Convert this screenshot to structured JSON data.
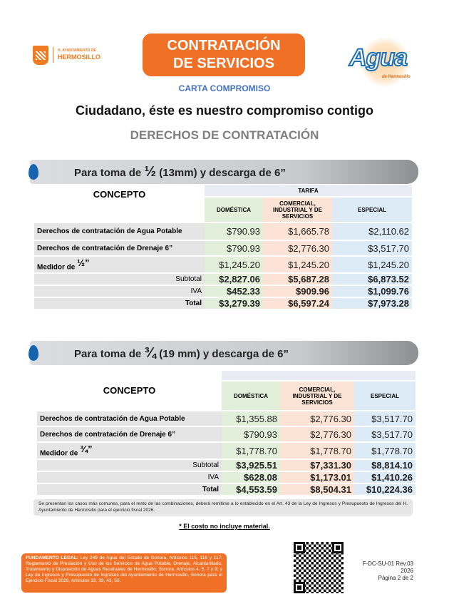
{
  "header": {
    "municipality_small": "H. AYUNTAMIENTO DE",
    "municipality": "HERMOSILLO",
    "title_line1": "CONTRATACIÓN",
    "title_line2": "DE SERVICIOS",
    "agua_logo": "Agua",
    "agua_logo_sub": "de Hermosillo",
    "subtitle": "CARTA COMPROMISO",
    "tagline": "Ciudadano, éste es nuestro compromiso contigo",
    "section": "DERECHOS DE CONTRATACIÓN",
    "colors": {
      "orange": "#f07125",
      "blue": "#4472c4",
      "gray": "#7f7f7f"
    }
  },
  "tables": [
    {
      "banner_pre": "Para toma de ",
      "banner_frac": "½",
      "banner_post": " (13mm) y descarga de 6”",
      "tarifa": "TARIFA",
      "concepto": "CONCEPTO",
      "columns": [
        "DOMÉSTICA",
        "COMERCIAL, INDUSTRIAL Y DE SERVICIOS",
        "ESPECIAL"
      ],
      "rows": [
        {
          "label": "Derechos de contratación de Agua Potable",
          "values": [
            "$790.93",
            "$1,665.78",
            "$2,110.62"
          ]
        },
        {
          "label": "Derechos de contratación de Drenaje 6”",
          "values": [
            "$790.93",
            "$2,776.30",
            "$3,517.70"
          ]
        },
        {
          "label": "Medidor de ",
          "frac": "½”",
          "values": [
            "$1,245.20",
            "$1,245.20",
            "$1,245.20"
          ]
        }
      ],
      "summary": [
        {
          "label": "Subtotal",
          "values": [
            "$2,827.06",
            "$5,687.28",
            "$6,873.52"
          ]
        },
        {
          "label": "IVA",
          "values": [
            "$452.33",
            "$909.96",
            "$1,099.76"
          ]
        },
        {
          "label": "Total",
          "values": [
            "$3,279.39",
            "$6,597.24",
            "$7,973.28"
          ]
        }
      ]
    },
    {
      "banner_pre": "Para toma de ",
      "banner_frac": "¾",
      "banner_post": " (19 mm) y descarga de 6”",
      "tarifa": "",
      "concepto": "CONCEPTO",
      "columns": [
        "DOMÉSTICA",
        "COMERCIAL, INDUSTRIAL Y DE SERVICIOS",
        "ESPECIAL"
      ],
      "rows": [
        {
          "label": "Derechos de contratación de Agua Potable",
          "values": [
            "$1,355.88",
            "$2,776.30",
            "$3,517.70"
          ]
        },
        {
          "label": "Derechos de contratación de Drenaje 6”",
          "values": [
            "$790.93",
            "$2,776.30",
            "$3,517.70"
          ]
        },
        {
          "label": "Medidor de ",
          "frac": "¾”",
          "values": [
            "$1,778.70",
            "$1,778.70",
            "$1,778.70"
          ]
        }
      ],
      "summary": [
        {
          "label": "Subtotal",
          "values": [
            "$3,925.51",
            "$7,331.30",
            "$8,814.10"
          ]
        },
        {
          "label": "IVA",
          "values": [
            "$628.08",
            "$1,173.01",
            "$1,410.26"
          ]
        },
        {
          "label": "Total",
          "values": [
            "$4,553.59",
            "$8,504.31",
            "$10,224.36"
          ]
        }
      ]
    }
  ],
  "footer": {
    "note": "Se presentan los casos más comunes, para el resto de las combinaciones, deberá remitirse a lo establecido en el Art. 43 de la Ley de Ingresos y Presupuesto de Ingresos del H. Ayuntamiento de Hermosillo para el ejercicio fiscal 2026.",
    "material": "* El costo no incluye material.",
    "legal_label": "FUNDAMENTO LEGAL:",
    "legal_text": " Ley 249 de Agua del Estado de Sonora, Artículos 115, 116 y 117; Reglamento de Prestación y Uso de los Servicios de Agua Potable, Drenaje, Alcantarillado, Tratamiento y Disposición de Aguas Residuales de Hermosillo, Sonora. Artículos 4, 5, 7 y 9; y Ley de Ingresos y Presupuesto de Ingresos del Ayuntamiento de Hermosillo, Sonora para el Ejercicio Fiscal 2026, Artículos 33, 39, 43, 50.",
    "form_code": "F-DC-SU-01 Rev.03",
    "year": "2026",
    "page": "Página 2 de 2"
  }
}
